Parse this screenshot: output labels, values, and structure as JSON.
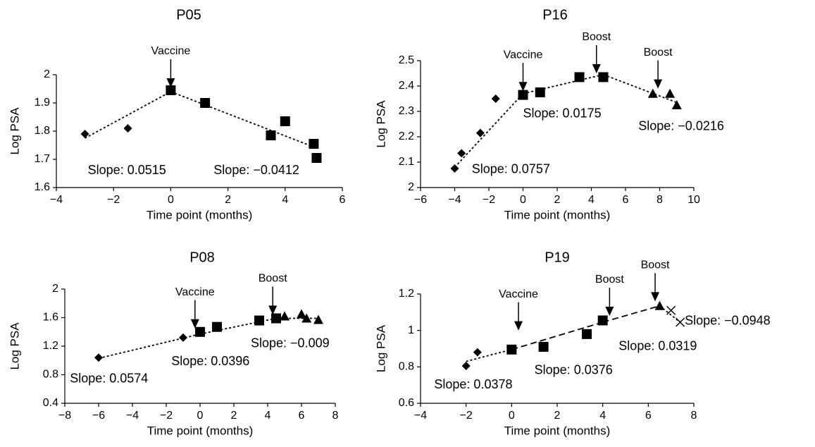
{
  "chart_data": [
    {
      "type": "scatter",
      "title": "P05",
      "xlabel": "Time point (months)",
      "ylabel": "Log PSA",
      "xlim": [
        -4,
        6
      ],
      "ylim": [
        1.6,
        2.0
      ],
      "xticks": [
        -4,
        -2,
        0,
        2,
        4,
        6
      ],
      "yticks": [
        1.6,
        1.7,
        1.8,
        1.9,
        2.0
      ],
      "xtick_labels": [
        "−4",
        "−2",
        "0",
        "2",
        "4",
        "6"
      ],
      "ytick_labels": [
        "1.6",
        "1.7",
        "1.8",
        "1.9",
        "2"
      ],
      "series": [
        {
          "marker": "diamond",
          "points": [
            [
              -3.0,
              1.79
            ],
            [
              -1.5,
              1.81
            ]
          ]
        },
        {
          "marker": "square",
          "points": [
            [
              0.0,
              1.945
            ],
            [
              1.2,
              1.9
            ],
            [
              3.5,
              1.785
            ],
            [
              4.0,
              1.835
            ],
            [
              5.0,
              1.755
            ],
            [
              5.1,
              1.705
            ]
          ]
        }
      ],
      "trendlines": [
        {
          "style": "dotted",
          "from": [
            -3.0,
            1.775
          ],
          "to": [
            0.0,
            1.94
          ]
        },
        {
          "style": "dotted",
          "from": [
            0.0,
            1.94
          ],
          "to": [
            5.1,
            1.74
          ]
        }
      ],
      "arrows": [
        {
          "label": "Vaccine",
          "x": 0.0,
          "y": 1.955
        }
      ],
      "annotations": [
        {
          "text": "Slope: 0.0515",
          "x": -2.9,
          "y": 1.66
        },
        {
          "text": "Slope: −0.0412",
          "x": 1.5,
          "y": 1.66
        }
      ]
    },
    {
      "type": "scatter",
      "title": "P16",
      "xlabel": "Time point (months)",
      "ylabel": "Log PSA",
      "xlim": [
        -6,
        10
      ],
      "ylim": [
        2.0,
        2.5
      ],
      "xticks": [
        -6,
        -4,
        -2,
        0,
        2,
        4,
        6,
        8,
        10
      ],
      "yticks": [
        2.0,
        2.1,
        2.2,
        2.3,
        2.4,
        2.5
      ],
      "xtick_labels": [
        "−6",
        "−4",
        "−2",
        "0",
        "2",
        "4",
        "6",
        "8",
        "10"
      ],
      "ytick_labels": [
        "2",
        "2.1",
        "2.2",
        "2.3",
        "2.4",
        "2.5"
      ],
      "series": [
        {
          "marker": "diamond",
          "points": [
            [
              -4.0,
              2.075
            ],
            [
              -3.6,
              2.135
            ],
            [
              -2.5,
              2.215
            ],
            [
              -1.6,
              2.35
            ]
          ]
        },
        {
          "marker": "square",
          "points": [
            [
              0.0,
              2.365
            ],
            [
              1.0,
              2.375
            ],
            [
              3.3,
              2.435
            ],
            [
              4.7,
              2.435
            ]
          ]
        },
        {
          "marker": "triangle",
          "points": [
            [
              7.6,
              2.37
            ],
            [
              8.6,
              2.37
            ],
            [
              9.0,
              2.325
            ]
          ]
        }
      ],
      "trendlines": [
        {
          "style": "dotted",
          "from": [
            -4.0,
            2.08
          ],
          "to": [
            0.0,
            2.37
          ]
        },
        {
          "style": "dotted",
          "from": [
            0.0,
            2.37
          ],
          "to": [
            4.7,
            2.445
          ]
        },
        {
          "style": "dotted",
          "from": [
            4.7,
            2.445
          ],
          "to": [
            9.0,
            2.335
          ]
        }
      ],
      "arrows": [
        {
          "label": "Vaccine",
          "x": 0.0,
          "y": 2.38
        },
        {
          "label": "Boost",
          "x": 4.3,
          "y": 2.45
        },
        {
          "label": "Boost",
          "x": 7.9,
          "y": 2.39
        }
      ],
      "annotations": [
        {
          "text": "Slope: 0.0175",
          "x": 0.0,
          "y": 2.29
        },
        {
          "text": "Slope: −0.0216",
          "x": 7.0,
          "y": 2.24
        },
        {
          "text": "Slope: 0.0757",
          "x": -3.0,
          "y": 2.07
        }
      ]
    },
    {
      "type": "scatter",
      "title": "P08",
      "xlabel": "Time point (months)",
      "ylabel": "Log PSA",
      "xlim": [
        -8,
        8
      ],
      "ylim": [
        0.4,
        2.0
      ],
      "xticks": [
        -8,
        -6,
        -4,
        -2,
        0,
        2,
        4,
        6,
        8
      ],
      "yticks": [
        0.4,
        0.8,
        1.2,
        1.6,
        2.0
      ],
      "xtick_labels": [
        "−8",
        "−6",
        "−4",
        "−2",
        "0",
        "2",
        "4",
        "6",
        "8"
      ],
      "ytick_labels": [
        "0.4",
        "0.8",
        "1.2",
        "1.6",
        "2"
      ],
      "series": [
        {
          "marker": "diamond",
          "points": [
            [
              -6.0,
              1.04
            ],
            [
              -1.0,
              1.32
            ]
          ]
        },
        {
          "marker": "square",
          "points": [
            [
              0.0,
              1.4
            ],
            [
              1.0,
              1.47
            ],
            [
              3.5,
              1.56
            ],
            [
              4.5,
              1.59
            ]
          ]
        },
        {
          "marker": "triangle",
          "points": [
            [
              5.0,
              1.62
            ],
            [
              6.0,
              1.65
            ],
            [
              6.3,
              1.59
            ],
            [
              7.0,
              1.57
            ]
          ]
        }
      ],
      "trendlines": [
        {
          "style": "dotted",
          "from": [
            -6.0,
            1.03
          ],
          "to": [
            0.0,
            1.37
          ]
        },
        {
          "style": "dotted",
          "from": [
            0.0,
            1.37
          ],
          "to": [
            4.5,
            1.59
          ]
        },
        {
          "style": "dotted",
          "from": [
            4.5,
            1.59
          ],
          "to": [
            7.0,
            1.59
          ]
        }
      ],
      "arrows": [
        {
          "label": "Vaccine",
          "x": -0.3,
          "y": 1.45
        },
        {
          "label": "Boost",
          "x": 4.3,
          "y": 1.64
        }
      ],
      "annotations": [
        {
          "text": "Slope: −0.009",
          "x": 3.0,
          "y": 1.23
        },
        {
          "text": "Slope: 0.0396",
          "x": -1.7,
          "y": 0.98
        },
        {
          "text": "Slope: 0.0574",
          "x": -7.7,
          "y": 0.74
        }
      ]
    },
    {
      "type": "scatter",
      "title": "P19",
      "xlabel": "Time point (months)",
      "ylabel": "Log PSA",
      "xlim": [
        -4,
        8
      ],
      "ylim": [
        0.6,
        1.2
      ],
      "xticks": [
        -4,
        -2,
        0,
        2,
        4,
        6,
        8
      ],
      "yticks": [
        0.6,
        0.8,
        1.0,
        1.2
      ],
      "xtick_labels": [
        "−4",
        "−2",
        "0",
        "2",
        "4",
        "6",
        "8"
      ],
      "ytick_labels": [
        "0.6",
        "0.8",
        "1",
        "1.2"
      ],
      "series": [
        {
          "marker": "diamond",
          "points": [
            [
              -2.0,
              0.805
            ],
            [
              -1.5,
              0.88
            ]
          ]
        },
        {
          "marker": "square",
          "points": [
            [
              0.0,
              0.895
            ],
            [
              1.4,
              0.91
            ],
            [
              3.3,
              0.98
            ],
            [
              4.0,
              1.055
            ]
          ]
        },
        {
          "marker": "triangle",
          "points": [
            [
              6.5,
              1.135
            ]
          ]
        },
        {
          "marker": "x",
          "points": [
            [
              7.0,
              1.11
            ],
            [
              7.4,
              1.045
            ]
          ]
        }
      ],
      "trendlines": [
        {
          "style": "dotted",
          "from": [
            -2.0,
            0.83
          ],
          "to": [
            0.0,
            0.895
          ]
        },
        {
          "style": "dashed",
          "from": [
            0.0,
            0.895
          ],
          "to": [
            4.0,
            1.045
          ]
        },
        {
          "style": "dashed",
          "from": [
            4.0,
            1.045
          ],
          "to": [
            6.5,
            1.135
          ]
        },
        {
          "style": "dotted",
          "from": [
            6.5,
            1.135
          ],
          "to": [
            7.4,
            1.045
          ]
        }
      ],
      "arrows": [
        {
          "label": "Vaccine",
          "x": 0.3,
          "y": 1.0
        },
        {
          "label": "Boost",
          "x": 4.3,
          "y": 1.08
        },
        {
          "label": "Boost",
          "x": 6.3,
          "y": 1.16
        }
      ],
      "annotations": [
        {
          "text": "Slope: −0.0948",
          "x": 7.6,
          "y": 1.05
        },
        {
          "text": "Slope: 0.0319",
          "x": 4.7,
          "y": 0.91
        },
        {
          "text": "Slope: 0.0376",
          "x": 1.0,
          "y": 0.78
        },
        {
          "text": "Slope: 0.0378",
          "x": -3.4,
          "y": 0.7
        }
      ]
    }
  ]
}
